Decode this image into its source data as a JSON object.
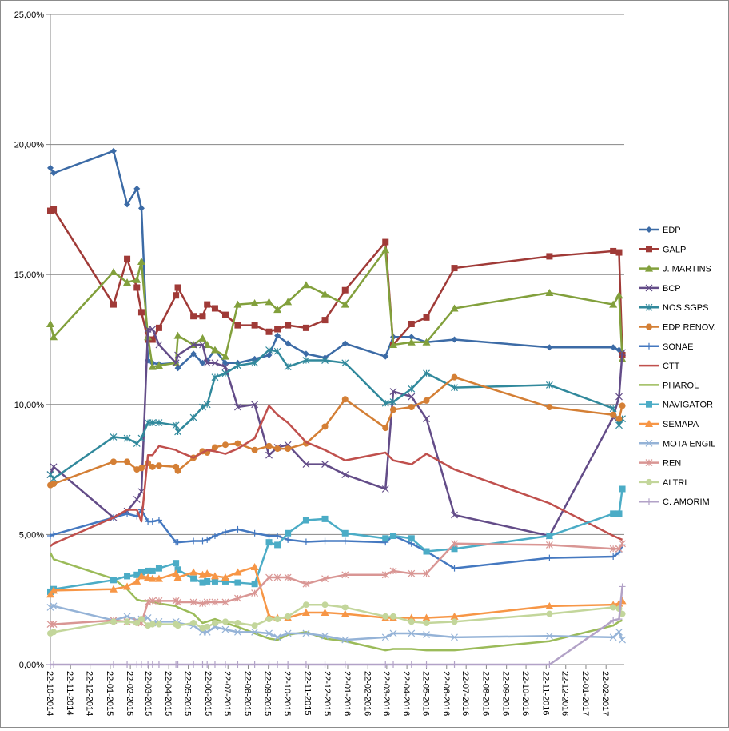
{
  "chart_data": {
    "type": "line",
    "title": "",
    "xlabel": "",
    "ylabel": "",
    "ylim": [
      0,
      25
    ],
    "yticks": [
      "0,00%",
      "5,00%",
      "10,00%",
      "15,00%",
      "20,00%",
      "25,00%"
    ],
    "ytick_values": [
      0,
      5,
      10,
      15,
      20,
      25
    ],
    "xlim": [
      "2014-10-22",
      "2017-03-22"
    ],
    "xticks": [
      "22-10-2014",
      "22-11-2014",
      "22-12-2014",
      "22-01-2015",
      "22-02-2015",
      "22-03-2015",
      "22-04-2015",
      "22-05-2015",
      "22-06-2015",
      "22-07-2015",
      "22-08-2015",
      "22-09-2015",
      "22-10-2015",
      "22-11-2015",
      "22-12-2015",
      "22-01-2016",
      "22-02-2016",
      "22-03-2016",
      "22-04-2016",
      "22-05-2016",
      "22-06-2016",
      "22-07-2016",
      "22-08-2016",
      "22-09-2016",
      "22-10-2016",
      "22-11-2016",
      "22-12-2016",
      "22-01-2017",
      "22-02-2017"
    ],
    "grid": "horizontal",
    "legend_position": "right",
    "x": [
      "2014-10-22",
      "2014-10-27",
      "2015-01-27",
      "2015-02-17",
      "2015-03-04",
      "2015-03-11",
      "2015-03-21",
      "2015-03-28",
      "2015-04-07",
      "2015-05-03",
      "2015-05-06",
      "2015-05-30",
      "2015-06-13",
      "2015-06-20",
      "2015-07-02",
      "2015-07-18",
      "2015-08-06",
      "2015-09-01",
      "2015-09-23",
      "2015-10-06",
      "2015-10-22",
      "2015-11-19",
      "2015-12-18",
      "2016-01-18",
      "2016-03-20",
      "2016-04-01",
      "2016-04-29",
      "2016-05-22",
      "2016-07-04",
      "2016-11-27",
      "2017-03-05",
      "2017-03-14",
      "2017-03-19"
    ],
    "series": [
      {
        "name": "EDP",
        "color": "#3c6ba6",
        "marker": "diamond",
        "values": [
          19.1,
          18.9,
          19.75,
          17.7,
          18.3,
          17.55,
          11.7,
          11.6,
          11.55,
          11.6,
          11.4,
          11.95,
          11.6,
          11.7,
          12.1,
          11.6,
          11.6,
          11.75,
          11.9,
          12.65,
          12.35,
          11.95,
          11.8,
          12.35,
          11.85,
          12.6,
          12.6,
          12.4,
          12.5,
          12.2,
          12.2,
          12.1,
          12.0
        ]
      },
      {
        "name": "GALP",
        "color": "#a03a37",
        "marker": "square",
        "values": [
          17.45,
          17.5,
          13.85,
          15.6,
          14.5,
          13.55,
          12.5,
          12.5,
          12.95,
          14.2,
          14.5,
          13.4,
          13.4,
          13.85,
          13.7,
          13.45,
          13.05,
          13.05,
          12.8,
          12.9,
          13.05,
          12.95,
          13.25,
          14.4,
          16.25,
          12.3,
          13.1,
          13.35,
          15.25,
          15.7,
          15.9,
          15.85,
          11.9
        ]
      },
      {
        "name": "J. MARTINS",
        "color": "#82a03c",
        "marker": "triangle",
        "values": [
          13.1,
          12.6,
          15.1,
          14.7,
          14.8,
          15.5,
          12.6,
          11.45,
          11.5,
          11.6,
          12.65,
          12.3,
          12.55,
          12.3,
          12.1,
          11.85,
          13.85,
          13.9,
          13.95,
          13.65,
          13.95,
          14.6,
          14.25,
          13.85,
          15.95,
          12.3,
          12.4,
          12.4,
          13.7,
          14.3,
          13.85,
          14.2,
          11.75
        ]
      },
      {
        "name": "BCP",
        "color": "#634c88",
        "marker": "x",
        "values": [
          7.3,
          7.6,
          5.65,
          5.9,
          6.35,
          6.65,
          12.9,
          12.9,
          12.3,
          11.6,
          11.9,
          12.3,
          12.3,
          11.6,
          11.6,
          11.45,
          9.9,
          10.0,
          8.05,
          8.35,
          8.45,
          7.7,
          7.7,
          7.3,
          6.75,
          10.5,
          10.3,
          9.45,
          5.75,
          4.95,
          9.5,
          10.3,
          12.0
        ]
      },
      {
        "name": "NOS SGPS",
        "color": "#31899c",
        "marker": "asterisk",
        "values": [
          7.3,
          7.15,
          8.75,
          8.7,
          8.5,
          8.7,
          9.3,
          9.3,
          9.3,
          9.2,
          8.95,
          9.5,
          9.9,
          10.0,
          11.05,
          11.2,
          11.5,
          11.6,
          12.1,
          12.05,
          11.45,
          11.7,
          11.7,
          11.6,
          10.05,
          10.1,
          10.6,
          11.2,
          10.65,
          10.75,
          9.85,
          9.2,
          9.45
        ]
      },
      {
        "name": "EDP RENOV.",
        "color": "#d47f35",
        "marker": "circle",
        "values": [
          6.9,
          6.95,
          7.8,
          7.8,
          7.5,
          7.55,
          7.75,
          7.6,
          7.65,
          7.6,
          7.45,
          7.95,
          8.2,
          8.15,
          8.35,
          8.45,
          8.5,
          8.25,
          8.4,
          8.3,
          8.3,
          8.5,
          9.15,
          10.2,
          9.1,
          9.8,
          9.9,
          10.15,
          11.05,
          9.9,
          9.6,
          9.45,
          9.95
        ]
      },
      {
        "name": "SONAE",
        "color": "#4478c0",
        "marker": "plus",
        "values": [
          4.95,
          5.0,
          5.65,
          5.8,
          5.7,
          5.95,
          5.5,
          5.5,
          5.55,
          4.7,
          4.7,
          4.75,
          4.75,
          4.8,
          4.95,
          5.1,
          5.2,
          5.05,
          4.95,
          4.95,
          4.8,
          4.72,
          4.75,
          4.75,
          4.7,
          4.95,
          4.65,
          4.35,
          3.7,
          4.1,
          4.15,
          4.3,
          4.6
        ]
      },
      {
        "name": "CTT",
        "color": "#c0504d",
        "marker": "none",
        "values": [
          4.55,
          4.65,
          5.65,
          5.95,
          5.95,
          5.5,
          8.05,
          8.05,
          8.4,
          8.25,
          8.2,
          7.95,
          8.15,
          8.25,
          8.2,
          8.1,
          8.3,
          8.7,
          9.95,
          9.6,
          9.3,
          8.55,
          8.25,
          7.85,
          8.15,
          7.85,
          7.7,
          8.1,
          7.5,
          6.2,
          4.95,
          4.85,
          4.8
        ]
      },
      {
        "name": "PHAROL",
        "color": "#9bbb59",
        "marker": "none",
        "values": [
          4.3,
          4.05,
          3.3,
          2.9,
          2.5,
          2.45,
          2.45,
          2.4,
          2.35,
          2.25,
          2.2,
          1.95,
          1.6,
          1.65,
          1.75,
          1.6,
          1.45,
          1.2,
          1.0,
          0.95,
          1.15,
          1.25,
          1.0,
          0.9,
          0.55,
          0.6,
          0.6,
          0.55,
          0.55,
          0.9,
          1.5,
          1.65,
          1.7
        ]
      },
      {
        "name": "NAVIGATOR",
        "color": "#4bacc6",
        "marker": "square",
        "values": [
          2.8,
          2.9,
          3.25,
          3.4,
          3.45,
          3.55,
          3.6,
          3.6,
          3.7,
          3.9,
          3.65,
          3.3,
          3.15,
          3.2,
          3.2,
          3.2,
          3.15,
          3.1,
          4.7,
          4.6,
          5.05,
          5.55,
          5.6,
          5.05,
          4.85,
          4.95,
          4.85,
          4.35,
          4.45,
          4.95,
          5.8,
          5.8,
          6.75
        ]
      },
      {
        "name": "SEMAPA",
        "color": "#f79646",
        "marker": "triangle",
        "values": [
          2.7,
          2.85,
          2.9,
          3.0,
          3.2,
          3.4,
          3.35,
          3.3,
          3.3,
          3.5,
          3.35,
          3.55,
          3.45,
          3.5,
          3.4,
          3.35,
          3.55,
          3.75,
          1.85,
          1.8,
          1.8,
          2.0,
          2.0,
          1.95,
          1.8,
          1.8,
          1.8,
          1.8,
          1.85,
          2.25,
          2.3,
          2.35,
          2.45
        ]
      },
      {
        "name": "MOTA ENGIL",
        "color": "#95b3d7",
        "marker": "x",
        "values": [
          2.2,
          2.25,
          1.7,
          1.85,
          1.7,
          1.75,
          1.8,
          1.6,
          1.65,
          1.65,
          1.6,
          1.5,
          1.25,
          1.25,
          1.45,
          1.35,
          1.25,
          1.25,
          1.2,
          1.05,
          1.2,
          1.2,
          1.1,
          0.95,
          1.05,
          1.2,
          1.2,
          1.15,
          1.05,
          1.1,
          1.05,
          1.25,
          0.95
        ]
      },
      {
        "name": "REN",
        "color": "#d99694",
        "marker": "asterisk",
        "values": [
          1.55,
          1.55,
          1.7,
          1.65,
          1.65,
          1.6,
          2.4,
          2.45,
          2.45,
          2.45,
          2.4,
          2.4,
          2.35,
          2.4,
          2.4,
          2.4,
          2.55,
          2.75,
          3.35,
          3.35,
          3.35,
          3.1,
          3.3,
          3.45,
          3.45,
          3.6,
          3.5,
          3.5,
          4.65,
          4.6,
          4.45,
          4.45,
          4.65
        ]
      },
      {
        "name": "ALTRI",
        "color": "#c3d69b",
        "marker": "circle",
        "values": [
          1.2,
          1.25,
          1.65,
          1.65,
          1.6,
          1.75,
          1.5,
          1.55,
          1.55,
          1.55,
          1.5,
          1.6,
          1.4,
          1.45,
          1.6,
          1.65,
          1.6,
          1.5,
          1.75,
          1.75,
          1.85,
          2.3,
          2.3,
          2.2,
          1.85,
          1.85,
          1.65,
          1.6,
          1.65,
          1.95,
          2.2,
          2.15,
          1.95
        ]
      },
      {
        "name": "C. AMORIM",
        "color": "#b2a2c7",
        "marker": "plus",
        "values": [
          0,
          0,
          0,
          0,
          0,
          0,
          0,
          0,
          0,
          0,
          0,
          0,
          0,
          0,
          0,
          0,
          0,
          0,
          0,
          0,
          0,
          0,
          0,
          0,
          0,
          0,
          0,
          0,
          0,
          0,
          1.7,
          1.75,
          3.0
        ]
      }
    ]
  }
}
